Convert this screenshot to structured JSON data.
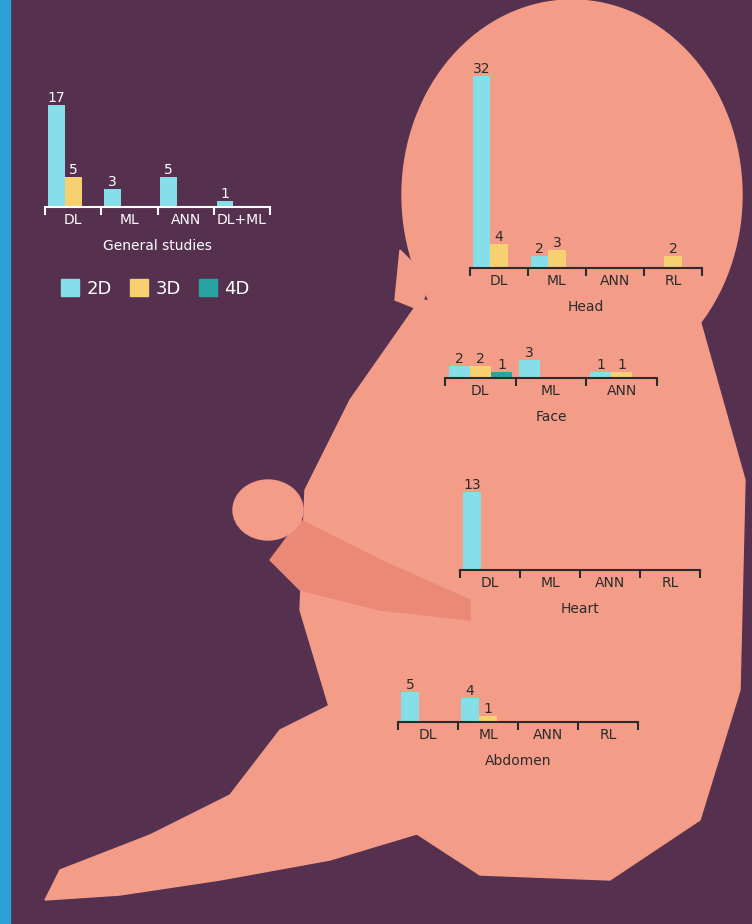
{
  "chart_data": [
    {
      "type": "bar",
      "title": "General studies",
      "categories": [
        "DL",
        "ML",
        "ANN",
        "DL+ML"
      ],
      "series": [
        {
          "name": "2D",
          "color": "#86dfe8",
          "values": [
            17,
            3,
            5,
            1
          ]
        },
        {
          "name": "3D",
          "color": "#f7d070",
          "values": [
            5,
            null,
            null,
            null
          ]
        },
        {
          "name": "4D",
          "color": "#2aa3a3",
          "values": [
            null,
            null,
            null,
            null
          ]
        }
      ],
      "ylim": [
        0,
        17
      ],
      "data_labels": true,
      "tick_labels": "x",
      "legend": "upper left"
    },
    {
      "type": "bar",
      "title": "Head",
      "categories": [
        "DL",
        "ML",
        "ANN",
        "RL"
      ],
      "series": [
        {
          "name": "2D",
          "color": "#86dfe8",
          "values": [
            32,
            2,
            null,
            null
          ]
        },
        {
          "name": "3D",
          "color": "#f7d070",
          "values": [
            4,
            3,
            null,
            2
          ]
        },
        {
          "name": "4D",
          "color": "#2aa3a3",
          "values": [
            null,
            null,
            null,
            null
          ]
        }
      ],
      "ylim": [
        0,
        32
      ],
      "data_labels": true,
      "tick_labels": "x"
    },
    {
      "type": "bar",
      "title": "Face",
      "categories": [
        "DL",
        "ML",
        "ANN"
      ],
      "series": [
        {
          "name": "2D",
          "color": "#86dfe8",
          "values": [
            2,
            3,
            1
          ]
        },
        {
          "name": "3D",
          "color": "#f7d070",
          "values": [
            2,
            null,
            1
          ]
        },
        {
          "name": "4D",
          "color": "#2aa3a3",
          "values": [
            1,
            null,
            null
          ]
        }
      ],
      "ylim": [
        0,
        3
      ],
      "data_labels": true,
      "tick_labels": "x"
    },
    {
      "type": "bar",
      "title": "Heart",
      "categories": [
        "DL",
        "ML",
        "ANN",
        "RL"
      ],
      "series": [
        {
          "name": "2D",
          "color": "#86dfe8",
          "values": [
            13,
            null,
            null,
            null
          ]
        },
        {
          "name": "3D",
          "color": "#f7d070",
          "values": [
            null,
            null,
            null,
            null
          ]
        },
        {
          "name": "4D",
          "color": "#2aa3a3",
          "values": [
            null,
            null,
            null,
            null
          ]
        }
      ],
      "ylim": [
        0,
        13
      ],
      "data_labels": true,
      "tick_labels": "x"
    },
    {
      "type": "bar",
      "title": "Abdomen",
      "categories": [
        "DL",
        "ML",
        "ANN",
        "RL"
      ],
      "series": [
        {
          "name": "2D",
          "color": "#86dfe8",
          "values": [
            5,
            4,
            null,
            null
          ]
        },
        {
          "name": "3D",
          "color": "#f7d070",
          "values": [
            null,
            1,
            null,
            null
          ]
        },
        {
          "name": "4D",
          "color": "#2aa3a3",
          "values": [
            null,
            null,
            null,
            null
          ]
        }
      ],
      "ylim": [
        0,
        5
      ],
      "data_labels": true,
      "tick_labels": "x"
    }
  ]
}
